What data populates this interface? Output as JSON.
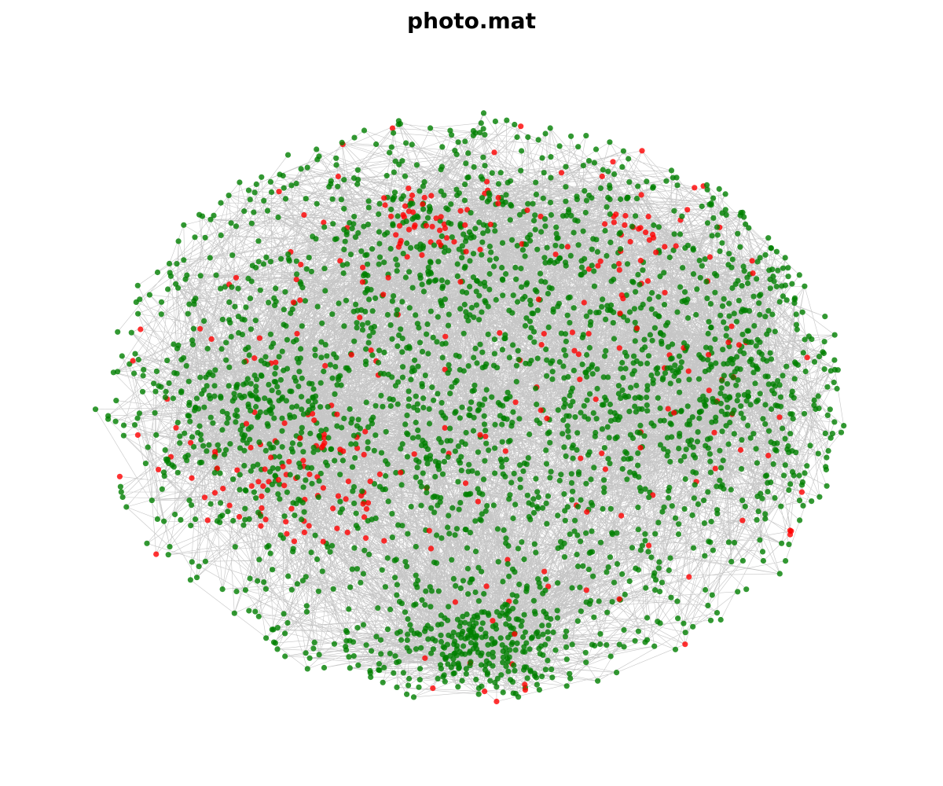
{
  "chart_data": {
    "type": "network",
    "title": "photo.mat",
    "node_color": "#008000",
    "highlight_color": "#ff0000",
    "edge_color": "#808080"
  }
}
